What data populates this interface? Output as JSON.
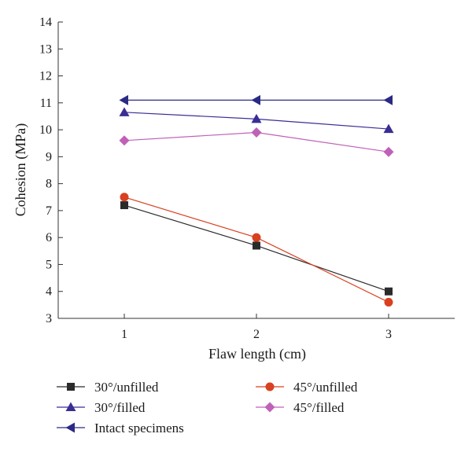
{
  "chart_data": {
    "type": "line",
    "title": "",
    "xlabel": "Flaw length (cm)",
    "ylabel": "Cohesion (MPa)",
    "x": [
      1,
      2,
      3
    ],
    "x_ticks": [
      "1",
      "2",
      "3"
    ],
    "xlim": [
      0.5,
      3.5
    ],
    "ylim": [
      3,
      14
    ],
    "y_ticks": [
      "3",
      "4",
      "5",
      "6",
      "7",
      "8",
      "9",
      "10",
      "11",
      "12",
      "13",
      "14"
    ],
    "grid": false,
    "legend_position": "bottom",
    "series": [
      {
        "name": "30°/unfilled",
        "values": [
          7.2,
          5.7,
          4.0
        ],
        "color": "#2b2b2b",
        "marker": "square"
      },
      {
        "name": "45°/unfilled",
        "values": [
          7.5,
          6.0,
          3.6
        ],
        "color": "#d9401f",
        "marker": "circle"
      },
      {
        "name": "30°/filled",
        "values": [
          10.65,
          10.4,
          10.03
        ],
        "color": "#3a2d94",
        "marker": "triangle-up"
      },
      {
        "name": "45°/filled",
        "values": [
          9.6,
          9.9,
          9.18
        ],
        "color": "#c061b8",
        "marker": "diamond"
      },
      {
        "name": "Intact specimens",
        "values": [
          11.1,
          11.1,
          11.1
        ],
        "color": "#2a2a85",
        "marker": "triangle-left"
      }
    ]
  }
}
